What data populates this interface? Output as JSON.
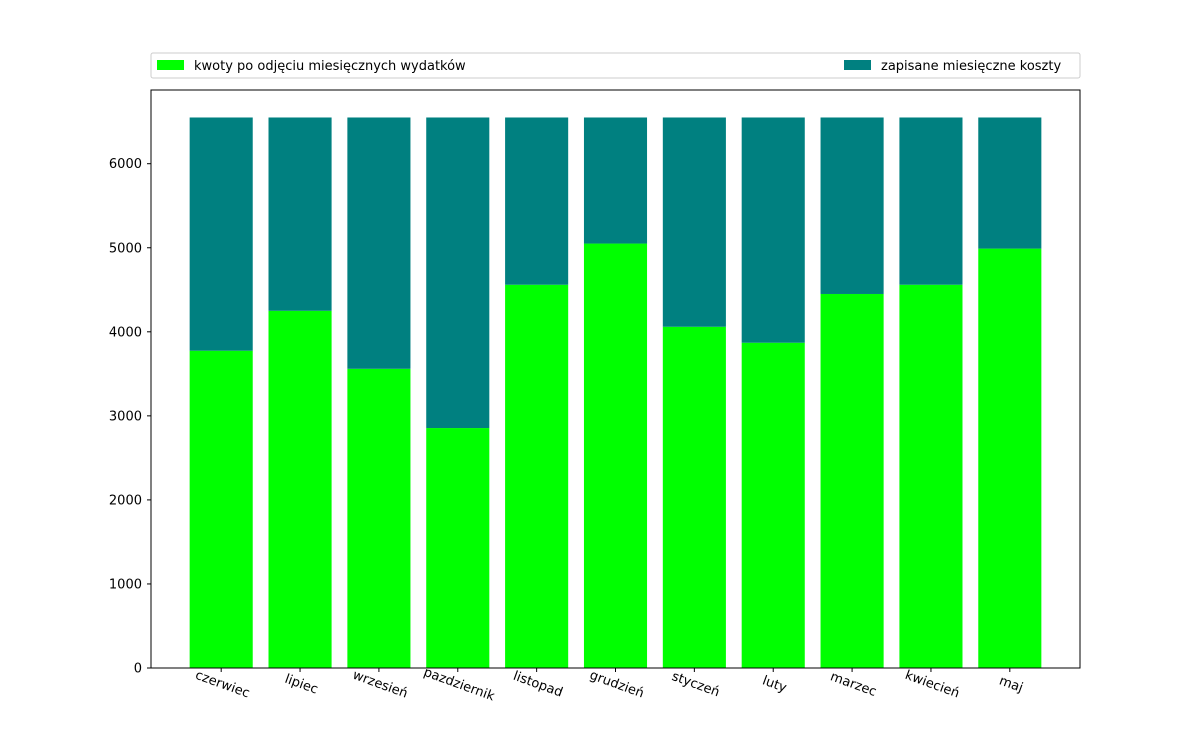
{
  "chart_data": {
    "type": "bar",
    "stacked": true,
    "categories": [
      "czerwiec",
      "lipiec",
      "wrzesień",
      "pazdziernik",
      "listopad",
      "grudzień",
      "styczeń",
      "luty",
      "marzec",
      "kwiecień",
      "maj"
    ],
    "series": [
      {
        "name": "kwoty po odjęciu miesięcznych wydatków",
        "color": "#00ff00",
        "values": [
          3775,
          4250,
          3560,
          2855,
          4560,
          5050,
          4060,
          3870,
          4450,
          4560,
          4990
        ]
      },
      {
        "name": "zapisane miesięczne koszty",
        "color": "#008080",
        "values": [
          2775,
          2300,
          2990,
          3695,
          1990,
          1500,
          2490,
          2680,
          2100,
          1990,
          1560
        ]
      }
    ],
    "ylim": [
      0,
      6877
    ],
    "yticks": [
      0,
      1000,
      2000,
      3000,
      4000,
      5000,
      6000
    ],
    "grid": false,
    "legend_placement": "top",
    "xlabel": "",
    "ylabel": "",
    "title": ""
  }
}
